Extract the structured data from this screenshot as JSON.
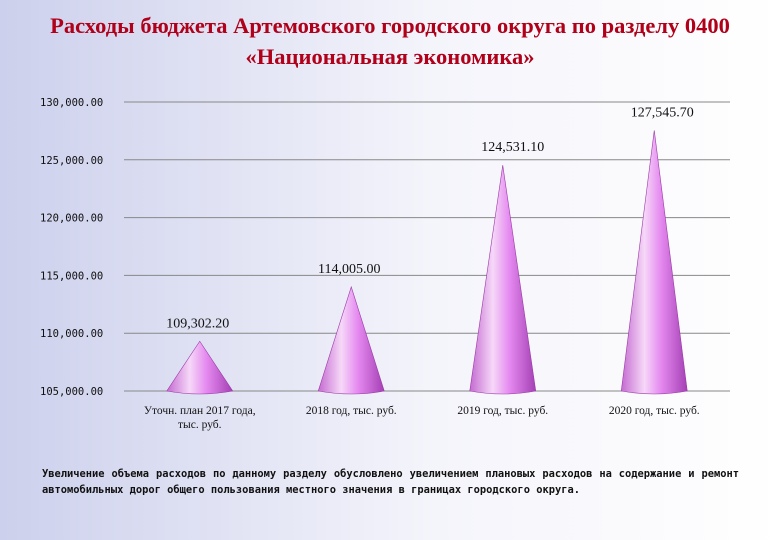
{
  "title": "Расходы бюджета Артемовского городского округа по разделу 0400 «Национальная экономика»",
  "note": "Увеличение объема расходов по данному разделу обусловлено увеличением плановых расходов на содержание и ремонт автомобильных дорог общего пользования местного значения в границах городского округа.",
  "chart_data": {
    "type": "bar",
    "mark_shape": "cone",
    "categories": [
      [
        "Уточн. план 2017 года,",
        "тыс. руб."
      ],
      [
        "2018 год, тыс. руб."
      ],
      [
        "2019 год, тыс. руб."
      ],
      [
        "2020 год, тыс. руб."
      ]
    ],
    "values": [
      109302.2,
      114005.0,
      124531.1,
      127545.7
    ],
    "value_labels": [
      "109,302.20",
      "114,005.00",
      "124,531.10",
      "127,545.70"
    ],
    "ylim": [
      105000,
      130000
    ],
    "yticks": [
      105000,
      110000,
      115000,
      120000,
      125000,
      130000
    ],
    "ytick_labels": [
      "105,000.00",
      "110,000.00",
      "115,000.00",
      "120,000.00",
      "125,000.00",
      "130,000.00"
    ],
    "grid": true,
    "colors": {
      "cone_light": "#f6d8f8",
      "cone_mid": "#e58af0",
      "cone_dark": "#a43fb4",
      "grid": "#888888"
    }
  }
}
